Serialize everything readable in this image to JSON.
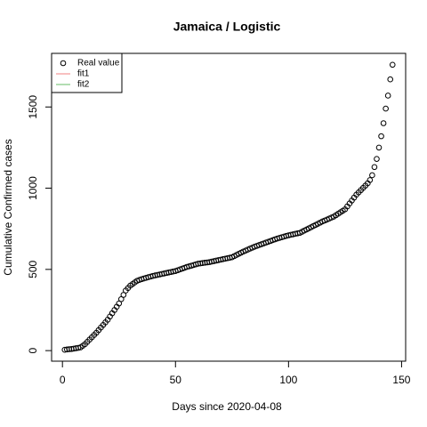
{
  "chart_data": {
    "type": "scatter",
    "title": "Jamaica / Logistic",
    "x_label": "Days since 2020-04-08",
    "y_label": "Cumulative Confirmed cases",
    "x": [
      1,
      2,
      3,
      4,
      5,
      6,
      7,
      8,
      9,
      10,
      11,
      12,
      13,
      14,
      15,
      16,
      17,
      18,
      19,
      20,
      21,
      22,
      23,
      24,
      25,
      26,
      27,
      28,
      29,
      30,
      31,
      32,
      33,
      34,
      35,
      36,
      37,
      38,
      39,
      40,
      41,
      42,
      43,
      44,
      45,
      46,
      47,
      48,
      49,
      50,
      51,
      52,
      53,
      54,
      55,
      56,
      57,
      58,
      59,
      60,
      61,
      62,
      63,
      64,
      65,
      66,
      67,
      68,
      69,
      70,
      71,
      72,
      73,
      74,
      75,
      76,
      77,
      78,
      79,
      80,
      81,
      82,
      83,
      84,
      85,
      86,
      87,
      88,
      89,
      90,
      91,
      92,
      93,
      94,
      95,
      96,
      97,
      98,
      99,
      100,
      101,
      102,
      103,
      104,
      105,
      106,
      107,
      108,
      109,
      110,
      111,
      112,
      113,
      114,
      115,
      116,
      117,
      118,
      119,
      120,
      121,
      122,
      123,
      124,
      125,
      126,
      127,
      128,
      129,
      130,
      131,
      132,
      133,
      134,
      135,
      136,
      137,
      138,
      139,
      140,
      141,
      142,
      143,
      144,
      145,
      146
    ],
    "values": [
      5,
      7,
      9,
      10,
      12,
      15,
      17,
      20,
      30,
      40,
      54,
      68,
      82,
      96,
      110,
      126,
      142,
      158,
      174,
      190,
      210,
      230,
      250,
      270,
      290,
      317,
      343,
      370,
      385,
      400,
      410,
      420,
      430,
      435,
      440,
      444,
      448,
      452,
      456,
      460,
      463,
      466,
      469,
      472,
      475,
      478,
      481,
      484,
      487,
      490,
      495,
      500,
      505,
      510,
      515,
      519,
      523,
      527,
      531,
      535,
      537,
      539,
      541,
      543,
      545,
      548,
      551,
      554,
      557,
      560,
      563,
      566,
      569,
      572,
      575,
      582,
      589,
      596,
      603,
      610,
      616,
      622,
      628,
      634,
      640,
      645,
      650,
      655,
      660,
      665,
      670,
      675,
      680,
      685,
      690,
      694,
      698,
      702,
      706,
      710,
      713,
      716,
      719,
      722,
      725,
      732,
      739,
      746,
      753,
      760,
      767,
      774,
      781,
      788,
      795,
      801,
      807,
      813,
      819,
      825,
      834,
      843,
      852,
      861,
      870,
      888,
      906,
      924,
      942,
      960,
      974,
      988,
      1002,
      1016,
      1030,
      1050,
      1080,
      1130,
      1180,
      1250,
      1320,
      1400,
      1490,
      1570,
      1670,
      1760
    ],
    "color": "#000000",
    "legend": [
      {
        "label": "Real value",
        "color": "#000000",
        "symbol": "circle"
      },
      {
        "label": "fit1",
        "color": "#f08080",
        "symbol": "line"
      },
      {
        "label": "fit2",
        "color": "#66bb66",
        "symbol": "line"
      }
    ],
    "legend_position": "top-left",
    "xlim": [
      -4.8,
      151.8
    ],
    "ylim": [
      -65,
      1830
    ],
    "xticks": [
      0,
      50,
      100,
      150
    ],
    "yticks": [
      0,
      500,
      1000,
      1500
    ]
  }
}
